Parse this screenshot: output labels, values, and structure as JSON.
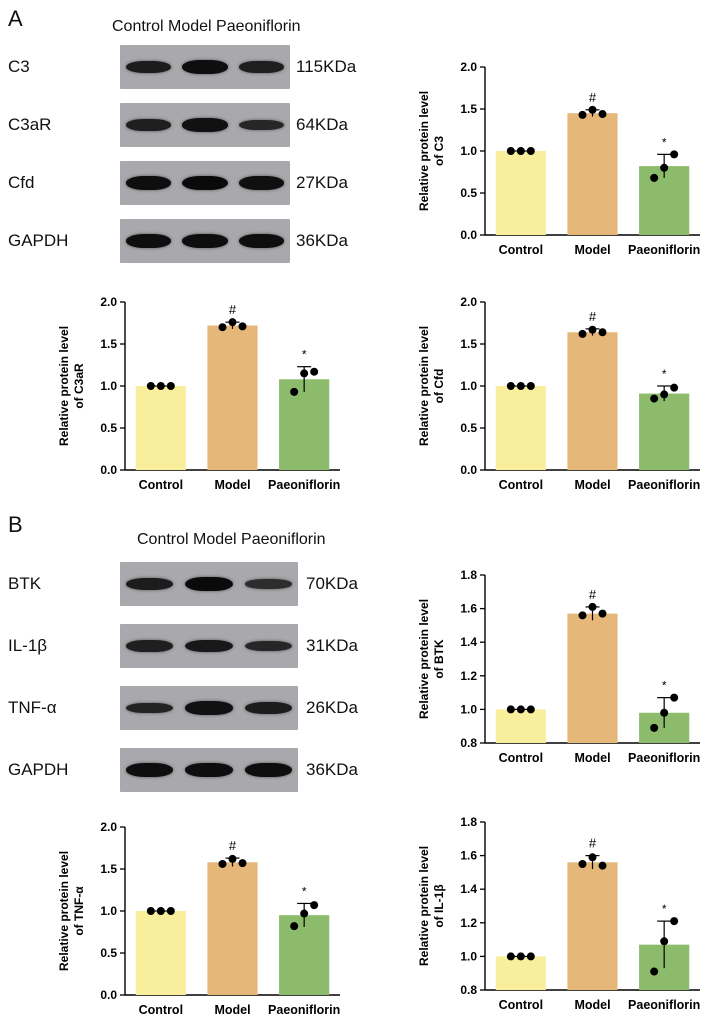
{
  "panels": [
    {
      "letter": "A",
      "blot_header": "Control Model Paeoniflorin",
      "blots": [
        {
          "protein": "C3",
          "size": "115KDa",
          "intensity": [
            0.75,
            0.95,
            0.72
          ]
        },
        {
          "protein": "C3aR",
          "size": "64KDa",
          "intensity": [
            0.7,
            0.9,
            0.6
          ]
        },
        {
          "protein": "Cfd",
          "size": "27KDa",
          "intensity": [
            0.95,
            1.0,
            0.92
          ]
        },
        {
          "protein": "GAPDH",
          "size": "36KDa",
          "intensity": [
            0.95,
            0.95,
            0.95
          ]
        }
      ]
    },
    {
      "letter": "B",
      "blot_header": "Control Model Paeoniflorin",
      "blots": [
        {
          "protein": "BTK",
          "size": "70KDa",
          "intensity": [
            0.75,
            1.0,
            0.5
          ]
        },
        {
          "protein": "IL-1β",
          "size": "31KDa",
          "intensity": [
            0.7,
            0.8,
            0.6
          ]
        },
        {
          "protein": "TNF-α",
          "size": "26KDa",
          "intensity": [
            0.65,
            0.9,
            0.75
          ]
        },
        {
          "protein": "GAPDH",
          "size": "36KDa",
          "intensity": [
            0.95,
            0.95,
            0.95
          ]
        }
      ]
    }
  ],
  "colors": {
    "control": "#f8ee9c",
    "model": "#e5b778",
    "paeoniflorin": "#8cbb6b"
  },
  "chart_data": [
    {
      "type": "bar",
      "categories": [
        "Control",
        "Model",
        "Paeoniflorin"
      ],
      "ylabel": "Relative protein level\nof C3",
      "ylim": [
        0,
        2.0
      ],
      "yticks": [
        "0.0",
        "0.5",
        "1.0",
        "1.5",
        "2.0"
      ],
      "values": [
        1.0,
        1.45,
        0.82
      ],
      "errors": [
        0.0,
        0.04,
        0.14
      ],
      "points": [
        [
          1.0,
          1.0,
          1.0
        ],
        [
          1.43,
          1.49,
          1.44
        ],
        [
          0.68,
          0.8,
          0.96
        ]
      ],
      "annotations": [
        "",
        "#",
        "*"
      ]
    },
    {
      "type": "bar",
      "categories": [
        "Control",
        "Model",
        "Paeoniflorin"
      ],
      "ylabel": "Relative protein level\nof C3aR",
      "ylim": [
        0,
        2.0
      ],
      "yticks": [
        "0.0",
        "0.5",
        "1.0",
        "1.5",
        "2.0"
      ],
      "values": [
        1.0,
        1.72,
        1.08
      ],
      "errors": [
        0.0,
        0.04,
        0.15
      ],
      "points": [
        [
          1.0,
          1.0,
          1.0
        ],
        [
          1.7,
          1.76,
          1.71
        ],
        [
          0.93,
          1.15,
          1.17
        ]
      ],
      "annotations": [
        "",
        "#",
        "*"
      ]
    },
    {
      "type": "bar",
      "categories": [
        "Control",
        "Model",
        "Paeoniflorin"
      ],
      "ylabel": "Relative protein level\nof Cfd",
      "ylim": [
        0,
        2.0
      ],
      "yticks": [
        "0.0",
        "0.5",
        "1.0",
        "1.5",
        "2.0"
      ],
      "values": [
        1.0,
        1.64,
        0.91
      ],
      "errors": [
        0.0,
        0.04,
        0.09
      ],
      "points": [
        [
          1.0,
          1.0,
          1.0
        ],
        [
          1.62,
          1.67,
          1.64
        ],
        [
          0.85,
          0.9,
          0.98
        ]
      ],
      "annotations": [
        "",
        "#",
        "*"
      ]
    },
    {
      "type": "bar",
      "categories": [
        "Control",
        "Model",
        "Paeoniflorin"
      ],
      "ylabel": "Relative protein level\nof BTK",
      "ylim": [
        0.8,
        1.8
      ],
      "yticks": [
        "0.8",
        "1.0",
        "1.2",
        "1.4",
        "1.6",
        "1.8"
      ],
      "values": [
        1.0,
        1.57,
        0.98
      ],
      "errors": [
        0.0,
        0.04,
        0.09
      ],
      "points": [
        [
          1.0,
          1.0,
          1.0
        ],
        [
          1.56,
          1.61,
          1.57
        ],
        [
          0.89,
          0.98,
          1.07
        ]
      ],
      "annotations": [
        "",
        "#",
        "*"
      ]
    },
    {
      "type": "bar",
      "categories": [
        "Control",
        "Model",
        "Paeoniflorin"
      ],
      "ylabel": "Relative protein level\nof TNF-α",
      "ylim": [
        0,
        2.0
      ],
      "yticks": [
        "0.0",
        "0.5",
        "1.0",
        "1.5",
        "2.0"
      ],
      "values": [
        1.0,
        1.58,
        0.95
      ],
      "errors": [
        0.0,
        0.05,
        0.14
      ],
      "points": [
        [
          1.0,
          1.0,
          1.0
        ],
        [
          1.56,
          1.62,
          1.57
        ],
        [
          0.82,
          0.97,
          1.07
        ]
      ],
      "annotations": [
        "",
        "#",
        "*"
      ]
    },
    {
      "type": "bar",
      "categories": [
        "Control",
        "Model",
        "Paeoniflorin"
      ],
      "ylabel": "Relative protein level\nof IL-1β",
      "ylim": [
        0.8,
        1.8
      ],
      "yticks": [
        "0.8",
        "1.0",
        "1.2",
        "1.4",
        "1.6",
        "1.8"
      ],
      "values": [
        1.0,
        1.56,
        1.07
      ],
      "errors": [
        0.0,
        0.04,
        0.14
      ],
      "points": [
        [
          1.0,
          1.0,
          1.0
        ],
        [
          1.55,
          1.59,
          1.54
        ],
        [
          0.91,
          1.09,
          1.21
        ]
      ],
      "annotations": [
        "",
        "#",
        "*"
      ]
    }
  ]
}
